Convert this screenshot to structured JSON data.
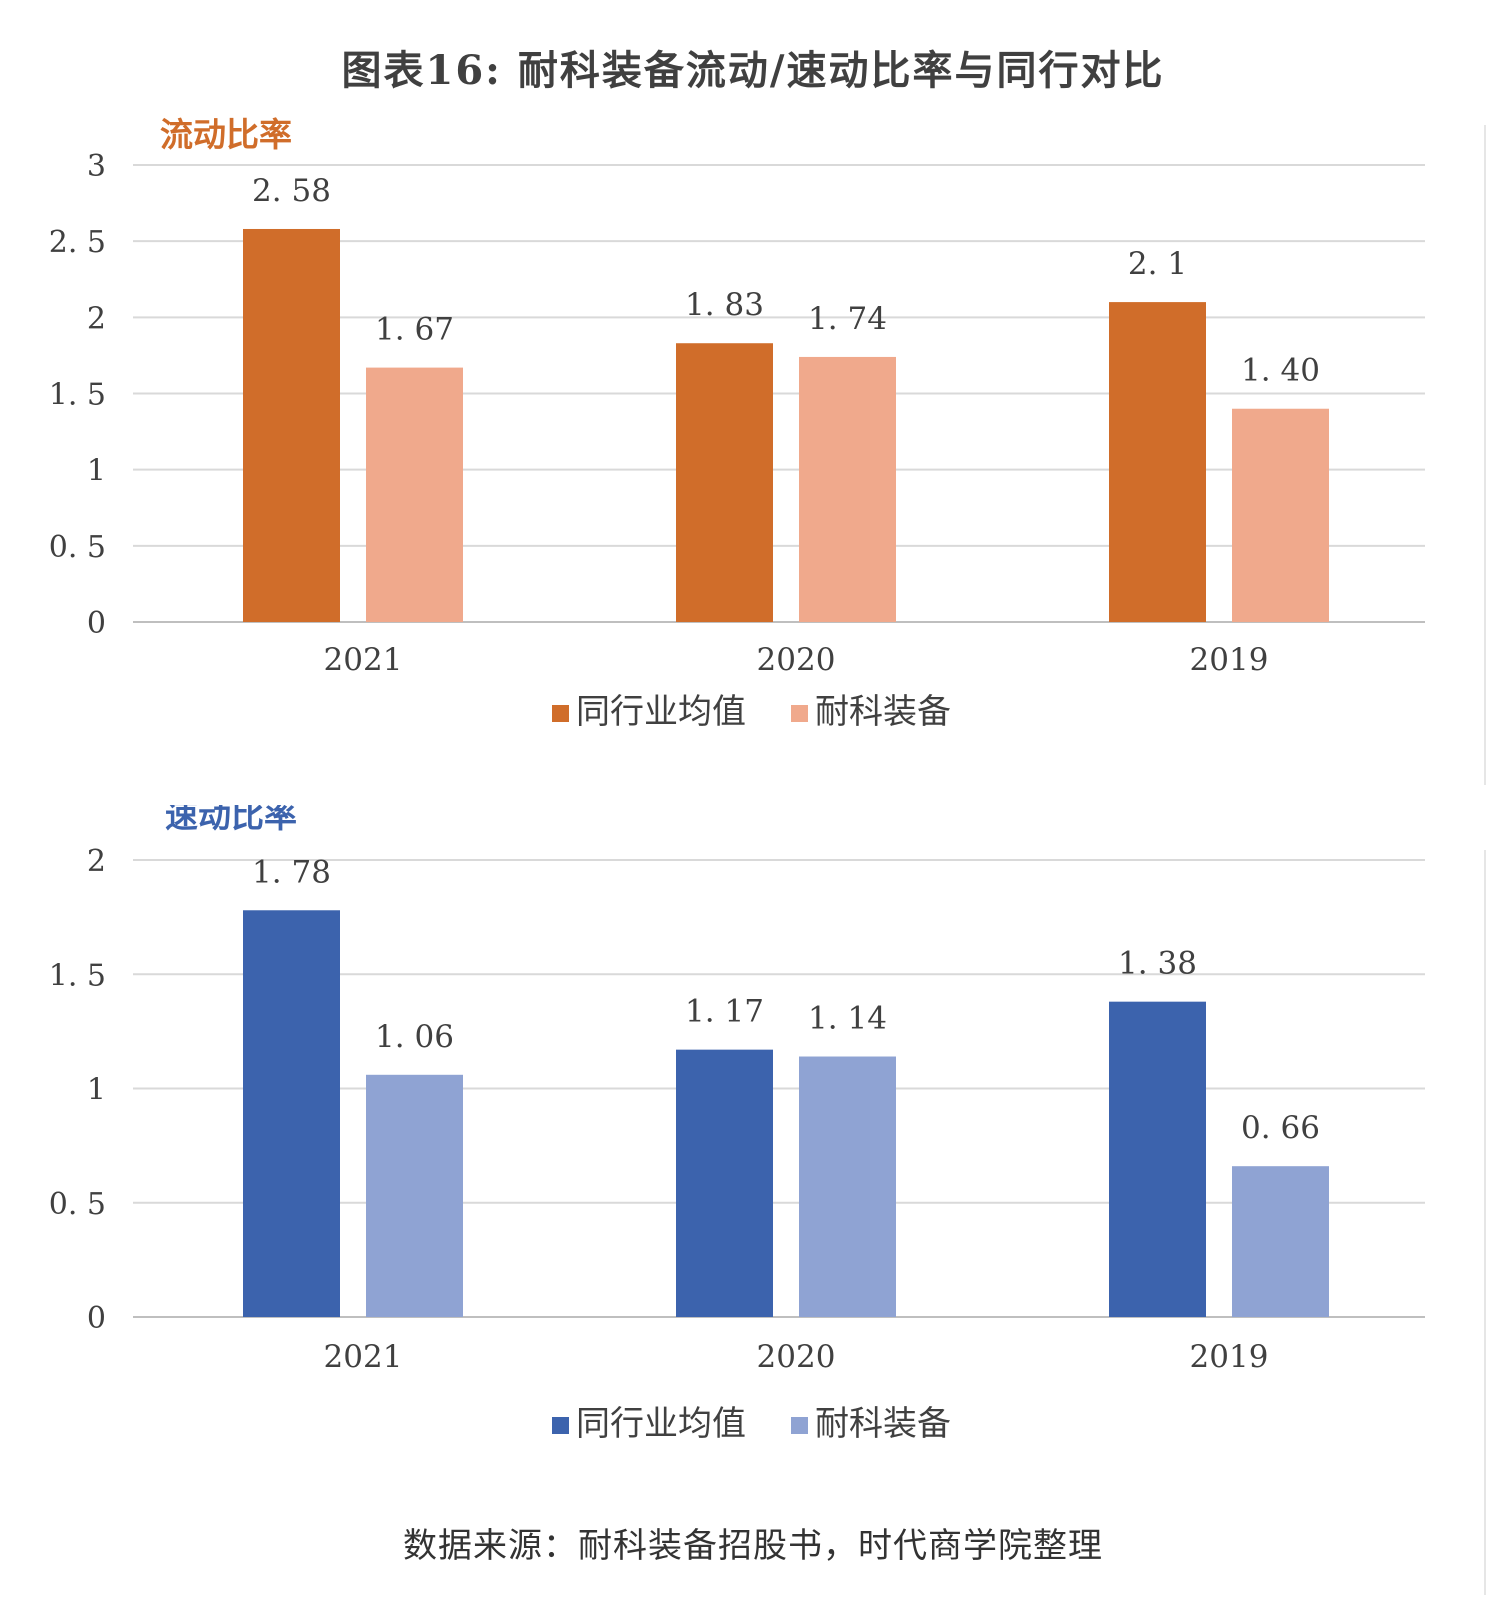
{
  "figure_title": "图表16: 耐科装备流动/速动比率与同行对比",
  "source_note": "数据来源：耐科装备招股书，时代商学院整理",
  "chart_data": [
    {
      "type": "bar",
      "title": "流动比率",
      "title_color": "#D06D2A",
      "categories": [
        "2021",
        "2020",
        "2019"
      ],
      "series": [
        {
          "name": "同行业均值",
          "values": [
            2.58,
            1.83,
            2.1
          ],
          "labels": [
            "2. 58",
            "1. 83",
            "2. 1"
          ],
          "color": "#D06D2A"
        },
        {
          "name": "耐科装备",
          "values": [
            1.67,
            1.74,
            1.4
          ],
          "labels": [
            "1. 67",
            "1. 74",
            "1. 40"
          ],
          "color": "#F0A98C"
        }
      ],
      "ylim": [
        0,
        3
      ],
      "yticks": [
        "0",
        "0. 5",
        "1",
        "1. 5",
        "2",
        "2. 5",
        "3"
      ],
      "ytick_values": [
        0,
        0.5,
        1,
        1.5,
        2,
        2.5,
        3
      ],
      "grid": true,
      "legend": "bottom-center"
    },
    {
      "type": "bar",
      "title": "速动比率",
      "title_color": "#3C63AD",
      "categories": [
        "2021",
        "2020",
        "2019"
      ],
      "series": [
        {
          "name": "同行业均值",
          "values": [
            1.78,
            1.17,
            1.38
          ],
          "labels": [
            "1. 78",
            "1. 17",
            "1. 38"
          ],
          "color": "#3C63AD"
        },
        {
          "name": "耐科装备",
          "values": [
            1.06,
            1.14,
            0.66
          ],
          "labels": [
            "1. 06",
            "1. 14",
            "0. 66"
          ],
          "color": "#8FA3D3"
        }
      ],
      "ylim": [
        0,
        2
      ],
      "yticks": [
        "0",
        "0. 5",
        "1",
        "1. 5",
        "2"
      ],
      "ytick_values": [
        0,
        0.5,
        1,
        1.5,
        2
      ],
      "grid": true,
      "legend": "bottom-center"
    }
  ]
}
